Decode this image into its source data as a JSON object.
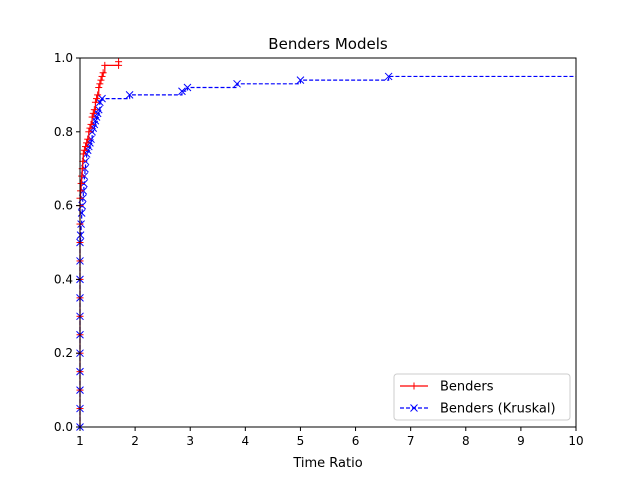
{
  "chart_data": {
    "type": "line",
    "title": "Benders Models",
    "xlabel": "Time Ratio",
    "ylabel": "",
    "xlim": [
      1,
      10
    ],
    "ylim": [
      0,
      1.0
    ],
    "xticks": [
      1,
      2,
      3,
      4,
      5,
      6,
      7,
      8,
      9,
      10
    ],
    "xtick_labels": [
      "1",
      "2",
      "3",
      "4",
      "5",
      "6",
      "7",
      "8",
      "9",
      "10"
    ],
    "yticks": [
      0,
      0.2,
      0.4,
      0.6,
      0.8,
      1.0
    ],
    "ytick_labels": [
      "0.0",
      "0.2",
      "0.4",
      "0.6",
      "0.8",
      "1.0"
    ],
    "grid": false,
    "legend_position": "lower-right",
    "series": [
      {
        "name": "Benders",
        "color": "#ff0000",
        "line_style": "solid",
        "marker": "plus",
        "x": [
          1.0,
          1.0,
          1.0,
          1.0,
          1.0,
          1.0,
          1.0,
          1.0,
          1.0,
          1.0,
          1.0,
          1.0,
          1.0,
          1.0,
          1.01,
          1.02,
          1.03,
          1.04,
          1.05,
          1.06,
          1.08,
          1.1,
          1.12,
          1.14,
          1.16,
          1.18,
          1.2,
          1.22,
          1.24,
          1.26,
          1.28,
          1.3,
          1.32,
          1.34,
          1.36,
          1.38,
          1.4,
          1.42,
          1.45,
          1.7,
          1.7
        ],
        "y": [
          0.0,
          0.05,
          0.1,
          0.15,
          0.2,
          0.25,
          0.3,
          0.35,
          0.4,
          0.45,
          0.5,
          0.55,
          0.6,
          0.62,
          0.64,
          0.66,
          0.68,
          0.7,
          0.72,
          0.74,
          0.75,
          0.76,
          0.77,
          0.78,
          0.8,
          0.81,
          0.82,
          0.84,
          0.85,
          0.86,
          0.88,
          0.89,
          0.9,
          0.92,
          0.93,
          0.94,
          0.95,
          0.96,
          0.98,
          0.98,
          0.99
        ]
      },
      {
        "name": "Benders (Kruskal)",
        "color": "#0000ff",
        "line_style": "dashed",
        "marker": "x",
        "x": [
          1.0,
          1.0,
          1.0,
          1.0,
          1.0,
          1.0,
          1.0,
          1.0,
          1.0,
          1.0,
          1.0,
          1.01,
          1.02,
          1.03,
          1.04,
          1.05,
          1.06,
          1.07,
          1.08,
          1.09,
          1.1,
          1.12,
          1.14,
          1.16,
          1.18,
          1.2,
          1.22,
          1.24,
          1.26,
          1.28,
          1.3,
          1.32,
          1.34,
          1.36,
          1.4,
          1.9,
          2.85,
          2.95,
          3.85,
          5.0,
          6.6,
          10.0
        ],
        "y": [
          0.0,
          0.05,
          0.1,
          0.15,
          0.2,
          0.25,
          0.3,
          0.35,
          0.4,
          0.45,
          0.5,
          0.52,
          0.55,
          0.58,
          0.6,
          0.62,
          0.64,
          0.66,
          0.68,
          0.7,
          0.72,
          0.74,
          0.75,
          0.76,
          0.77,
          0.78,
          0.8,
          0.81,
          0.82,
          0.83,
          0.84,
          0.85,
          0.86,
          0.88,
          0.89,
          0.9,
          0.91,
          0.92,
          0.93,
          0.94,
          0.95,
          0.95
        ]
      }
    ]
  }
}
